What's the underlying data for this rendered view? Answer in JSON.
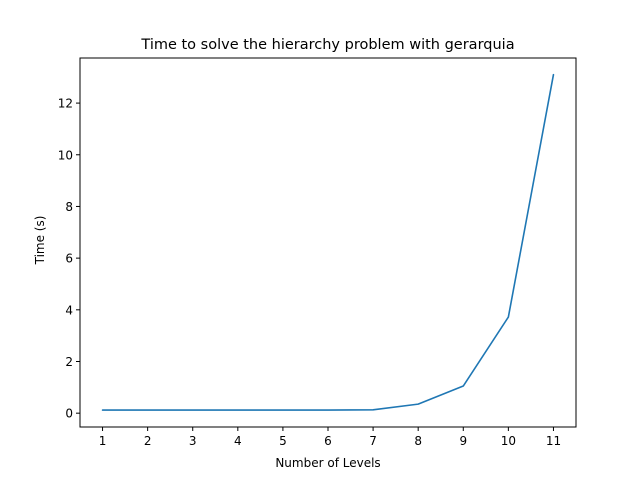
{
  "chart_data": {
    "type": "line",
    "title": "Time to solve the hierarchy problem with gerarquia",
    "xlabel": "Number of Levels",
    "ylabel": "Time (s)",
    "x": [
      1,
      2,
      3,
      4,
      5,
      6,
      7,
      8,
      9,
      10,
      11
    ],
    "series": [
      {
        "values": [
          0.12,
          0.12,
          0.12,
          0.12,
          0.12,
          0.12,
          0.13,
          0.35,
          1.05,
          3.72,
          13.1
        ],
        "color": "#1f77b4"
      }
    ],
    "xticks": [
      1,
      2,
      3,
      4,
      5,
      6,
      7,
      8,
      9,
      10,
      11
    ],
    "yticks": [
      0,
      2,
      4,
      6,
      8,
      10,
      12
    ],
    "xlim": [
      0.5,
      11.5
    ],
    "ylim": [
      -0.535,
      13.745
    ],
    "grid": false,
    "legend": "none"
  }
}
